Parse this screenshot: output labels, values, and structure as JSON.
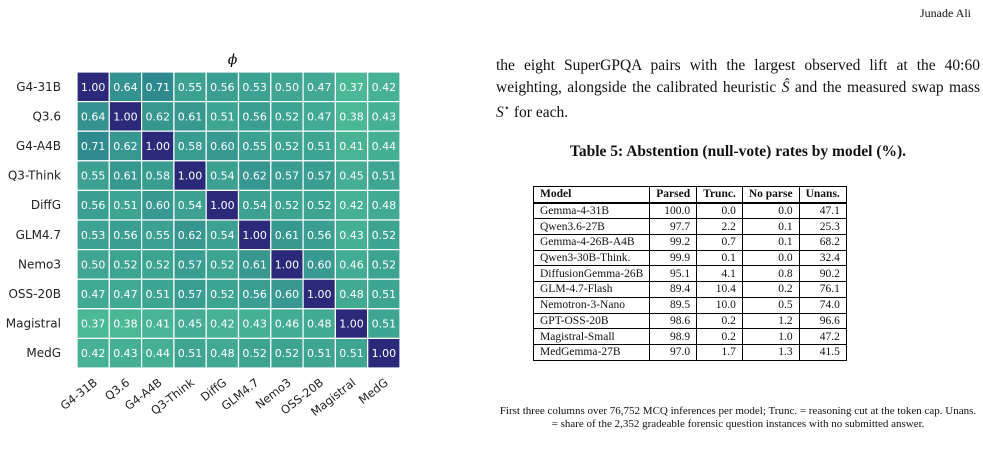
{
  "header": {
    "author": "Junade Ali"
  },
  "chart_data": {
    "type": "heatmap",
    "title": "ϕ",
    "labels": [
      "G4-31B",
      "Q3.6",
      "G4-A4B",
      "Q3-Think",
      "DiffG",
      "GLM4.7",
      "Nemo3",
      "OSS-20B",
      "Magistral",
      "MedG"
    ],
    "values": [
      [
        1.0,
        0.64,
        0.71,
        0.55,
        0.56,
        0.53,
        0.5,
        0.47,
        0.37,
        0.42
      ],
      [
        0.64,
        1.0,
        0.62,
        0.61,
        0.51,
        0.56,
        0.52,
        0.47,
        0.38,
        0.43
      ],
      [
        0.71,
        0.62,
        1.0,
        0.58,
        0.6,
        0.55,
        0.52,
        0.51,
        0.41,
        0.44
      ],
      [
        0.55,
        0.61,
        0.58,
        1.0,
        0.54,
        0.62,
        0.57,
        0.57,
        0.45,
        0.51
      ],
      [
        0.56,
        0.51,
        0.6,
        0.54,
        1.0,
        0.54,
        0.52,
        0.52,
        0.42,
        0.48
      ],
      [
        0.53,
        0.56,
        0.55,
        0.62,
        0.54,
        1.0,
        0.61,
        0.56,
        0.43,
        0.52
      ],
      [
        0.5,
        0.52,
        0.52,
        0.57,
        0.52,
        0.61,
        1.0,
        0.6,
        0.46,
        0.52
      ],
      [
        0.47,
        0.47,
        0.51,
        0.57,
        0.52,
        0.56,
        0.6,
        1.0,
        0.48,
        0.51
      ],
      [
        0.37,
        0.38,
        0.41,
        0.45,
        0.42,
        0.43,
        0.46,
        0.48,
        1.0,
        0.51
      ],
      [
        0.42,
        0.43,
        0.44,
        0.51,
        0.48,
        0.52,
        0.52,
        0.51,
        0.51,
        1.0
      ]
    ],
    "colors": {
      "low": "#4bb896",
      "mid": "#2e8a8e",
      "diag": "#2b2a7a"
    }
  },
  "paragraph": {
    "text1": "the eight SuperGPQA pairs with the largest observed lift at the 40:60 weighting, alongside the calibrated heuristic ",
    "shat": "Ŝ",
    "text2": " and the measured swap mass ",
    "sstar": "S",
    "star": "⋆",
    "text3": " for each."
  },
  "table": {
    "caption": "Table 5: Abstention (null-vote) rates by model (%).",
    "headers": [
      "Model",
      "Parsed",
      "Trunc.",
      "No parse",
      "Unans."
    ],
    "rows": [
      [
        "Gemma-4-31B",
        "100.0",
        "0.0",
        "0.0",
        "47.1"
      ],
      [
        "Qwen3.6-27B",
        "97.7",
        "2.2",
        "0.1",
        "25.3"
      ],
      [
        "Gemma-4-26B-A4B",
        "99.2",
        "0.7",
        "0.1",
        "68.2"
      ],
      [
        "Qwen3-30B-Think.",
        "99.9",
        "0.1",
        "0.0",
        "32.4"
      ],
      [
        "DiffusionGemma-26B",
        "95.1",
        "4.1",
        "0.8",
        "90.2"
      ],
      [
        "GLM-4.7-Flash",
        "89.4",
        "10.4",
        "0.2",
        "76.1"
      ],
      [
        "Nemotron-3-Nano",
        "89.5",
        "10.0",
        "0.5",
        "74.0"
      ],
      [
        "GPT-OSS-20B",
        "98.6",
        "0.2",
        "1.2",
        "96.6"
      ],
      [
        "Magistral-Small",
        "98.9",
        "0.2",
        "1.0",
        "47.2"
      ],
      [
        "MedGemma-27B",
        "97.0",
        "1.7",
        "1.3",
        "41.5"
      ]
    ],
    "note": "First three columns over 76,752 MCQ inferences per model; Trunc. = reasoning cut at the token cap. Unans. = share of the 2,352 gradeable forensic question instances with no submitted answer."
  }
}
